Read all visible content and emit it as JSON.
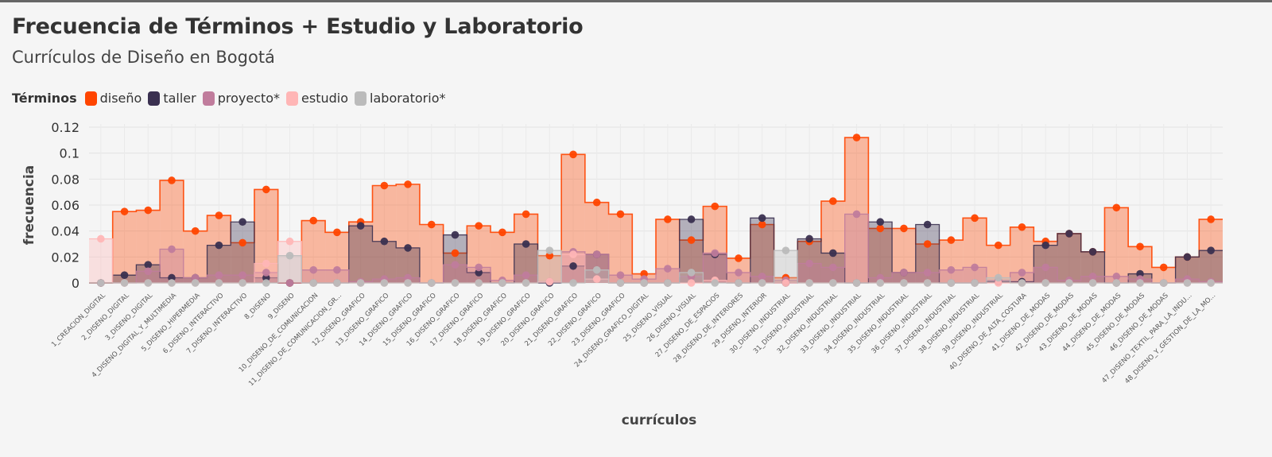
{
  "title": "Frecuencia de Términos + Estudio y Laboratorio",
  "subtitle": "Currículos de Diseño en Bogotá",
  "legend": {
    "title": "Términos",
    "items": [
      {
        "label": "diseño",
        "color": "#ff4500"
      },
      {
        "label": "taller",
        "color": "#3a3050"
      },
      {
        "label": "proyecto*",
        "color": "#c07c9c"
      },
      {
        "label": "estudio",
        "color": "#ffb6b6"
      },
      {
        "label": "laboratorio*",
        "color": "#bbbbbb"
      }
    ]
  },
  "chart_data": {
    "type": "step-area",
    "xlabel": "currículos",
    "ylabel": "frecuencia",
    "ylim": [
      0,
      0.12
    ],
    "yticks": [
      0,
      0.02,
      0.04,
      0.06,
      0.08,
      0.1,
      0.12
    ],
    "ytick_labels": [
      "0",
      "0.02",
      "0.04",
      "0.06",
      "0.08",
      "0.1",
      "0.12"
    ],
    "grid": true,
    "legend_position": "top-left",
    "categories": [
      "1_CREACION_DIGITAL",
      "2_DISENO_DIGITAL",
      "3_DISENO_DIGITAL",
      "4_DISENO_DIGITAL_Y_MULTIMEDIA",
      "5_DISENO_HIPERMEDIA",
      "6_DISENO_INTERACTIVO",
      "7_DISENO_INTERACTIVO",
      "8_DISENO",
      "9_DISENO",
      "10_DISENO_DE_COMUNICACION",
      "11_DISENO_DE_COMUNICACION_GR...",
      "12_DISENO_GRAFICO",
      "13_DISENO_GRAFICO",
      "14_DISENO_GRAFICO",
      "15_DISENO_GRAFICO",
      "16_DISENO_GRAFICO",
      "17_DISENO_GRAFICO",
      "18_DISENO_GRAFICO",
      "19_DISENO_GRAFICO",
      "20_DISENO_GRAFICO",
      "21_DISENO_GRAFICO",
      "22_DISENO_GRAFICO",
      "23_DISENO_GRAFICO",
      "24_DISENO_GRAFICO_DIGITAL",
      "25_DISENO_VISUAL",
      "26_DISENO_VISUAL",
      "27_DISENO_DE_ESPACIOS",
      "28_DISENO_DE_INTERIORES",
      "29_DISENO_INTERIOR",
      "30_DISENO_INDUSTRIAL",
      "31_DISENO_INDUSTRIAL",
      "32_DISENO_INDUSTRIAL",
      "33_DISENO_INDUSTRIAL",
      "34_DISENO_INDUSTRIAL",
      "35_DISENO_INDUSTRIAL",
      "36_DISENO_INDUSTRIAL",
      "37_DISENO_INDUSTRIAL",
      "38_DISENO_INDUSTRIAL",
      "39_DISENO_INDUSTRIAL",
      "40_DISENO_DE_ALTA_COSTURA",
      "41_DISENO_DE_MODAS",
      "42_DISENO_DE_MODAS",
      "43_DISENO_DE_MODAS",
      "44_DISENO_DE_MODAS",
      "45_DISENO_DE_MODAS",
      "46_DISENO_DE_MODAS",
      "47_DISENO_TEXTIL_PARA_LA_INDU...",
      "48_DISENO_Y_GESTION_DE_LA_MO..."
    ],
    "series": [
      {
        "name": "diseño",
        "color": "#ff4500",
        "values": [
          0,
          0.055,
          0.056,
          0.079,
          0.04,
          0.052,
          0.031,
          0.072,
          0,
          0.048,
          0.039,
          0.047,
          0.075,
          0.076,
          0.045,
          0.023,
          0.044,
          0.039,
          0.053,
          0.021,
          0.099,
          0.062,
          0.053,
          0.007,
          0.049,
          0.033,
          0.059,
          0.019,
          0.045,
          0.004,
          0.032,
          0.063,
          0.112,
          0.042,
          0.042,
          0.03,
          0.033,
          0.05,
          0.029,
          0.043,
          0.032,
          0.038,
          0.024,
          0.058,
          0.028,
          0.012,
          0.02,
          0.049
        ]
      },
      {
        "name": "taller",
        "color": "#3a3050",
        "values": [
          0,
          0.006,
          0.014,
          0.004,
          0.004,
          0.029,
          0.047,
          0.004,
          0,
          0,
          0,
          0.044,
          0.032,
          0.027,
          0,
          0.037,
          0.008,
          0,
          0.03,
          0,
          0.013,
          0.022,
          0,
          0,
          0,
          0.049,
          0.022,
          0,
          0.05,
          0,
          0.034,
          0.023,
          0,
          0.047,
          0.008,
          0.045,
          0,
          0,
          0.001,
          0.001,
          0.029,
          0.038,
          0.024,
          0,
          0.007,
          0,
          0.02,
          0.025
        ]
      },
      {
        "name": "proyecto*",
        "color": "#c07c9c",
        "values": [
          0,
          0,
          0.009,
          0.026,
          0.004,
          0.006,
          0.006,
          0.008,
          0,
          0.01,
          0.01,
          0.001,
          0.003,
          0.004,
          0,
          0.014,
          0.012,
          0.002,
          0.006,
          0.001,
          0.024,
          0.022,
          0.006,
          0.003,
          0.011,
          0.005,
          0.023,
          0.008,
          0.005,
          0.002,
          0.015,
          0.012,
          0.053,
          0.004,
          0.008,
          0.008,
          0.01,
          0.012,
          0.002,
          0.008,
          0.012,
          0.002,
          0.005,
          0.005,
          0.003,
          0,
          0.003,
          0.001
        ]
      },
      {
        "name": "estudio",
        "color": "#ffb6b6",
        "values": [
          0.034,
          0,
          0,
          0,
          0,
          0,
          0,
          0.015,
          0.032,
          0,
          0,
          0,
          0,
          0,
          0,
          0,
          0,
          0,
          0,
          0.001,
          0.022,
          0.003,
          0,
          0,
          0,
          0,
          0.002,
          0,
          0,
          0,
          0,
          0,
          0,
          0,
          0,
          0,
          0,
          0,
          0,
          0,
          0,
          0,
          0,
          0,
          0,
          0,
          0,
          0
        ]
      },
      {
        "name": "laboratorio*",
        "color": "#bbbbbb",
        "values": [
          0,
          0,
          0,
          0,
          0,
          0,
          0,
          0,
          0.021,
          0,
          0,
          0,
          0,
          0,
          0,
          0,
          0,
          0,
          0,
          0.025,
          0,
          0.01,
          0,
          0,
          0,
          0.008,
          0,
          0,
          0,
          0.025,
          0,
          0,
          0,
          0,
          0,
          0,
          0,
          0,
          0.004,
          0,
          0,
          0,
          0,
          0,
          0,
          0,
          0,
          0
        ]
      }
    ]
  }
}
